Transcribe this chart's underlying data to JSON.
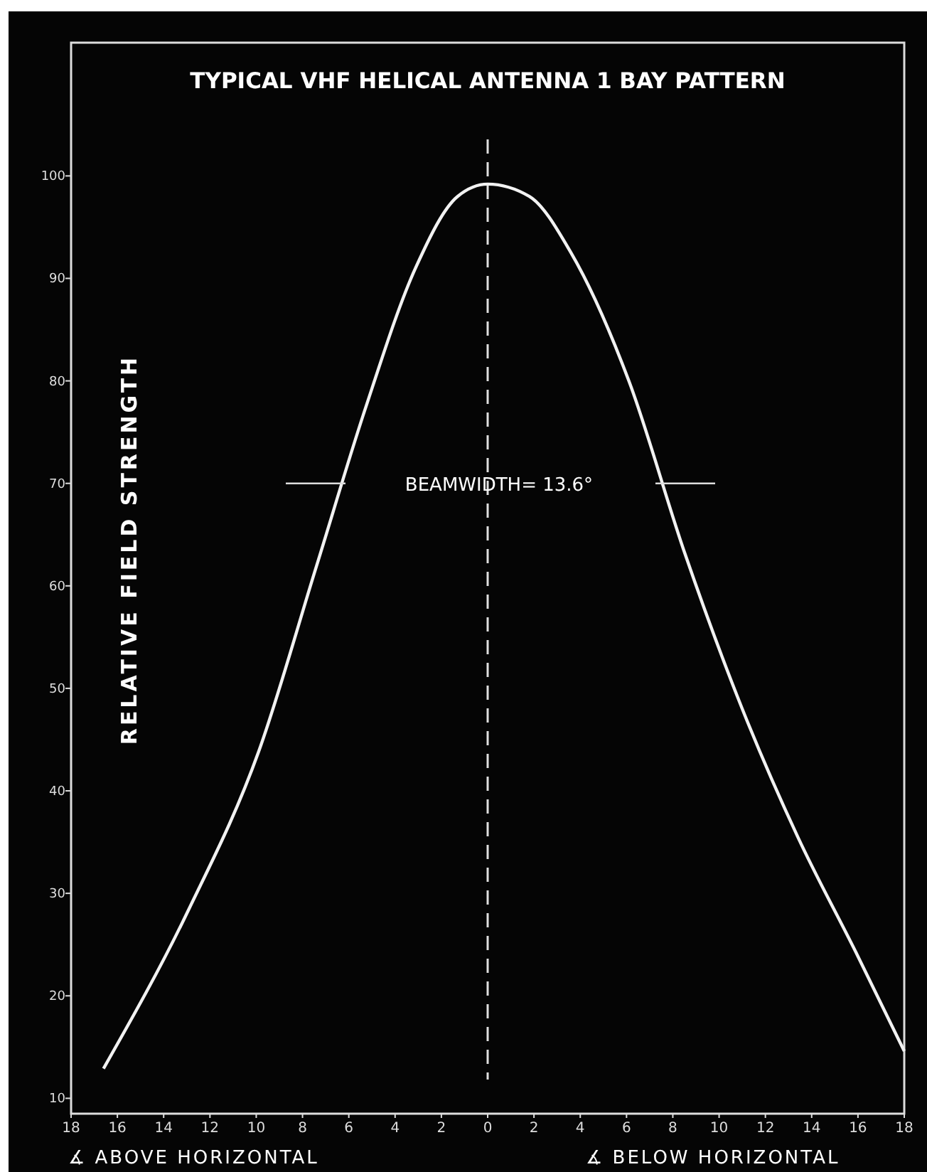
{
  "chart_data": {
    "type": "line",
    "title": "TYPICAL VHF HELICAL ANTENNA  1 BAY PATTERN",
    "ylabel": "RELATIVE FIELD STRENGTH",
    "x": [
      -16.6,
      -12.9,
      -9.9,
      -7.4,
      -5.3,
      -3.1,
      -1.3,
      0,
      1.8,
      3.6,
      6.1,
      8.5,
      11,
      13.4,
      15.9,
      18
    ],
    "series": [
      {
        "color": "#f2f2f2",
        "values": [
          12.9,
          28.5,
          43.8,
          61.9,
          77.2,
          91.1,
          98,
          99.2,
          98,
          92.5,
          80,
          63.3,
          48,
          35.5,
          24.3,
          14.6
        ]
      }
    ],
    "xlim": [
      -18,
      18
    ],
    "ylim": [
      8.5,
      113
    ],
    "xticks": [
      {
        "value": -18,
        "label": "18"
      },
      {
        "value": -16,
        "label": "16"
      },
      {
        "value": -14,
        "label": "14"
      },
      {
        "value": -12,
        "label": "12"
      },
      {
        "value": -10,
        "label": "10"
      },
      {
        "value": -8,
        "label": "8"
      },
      {
        "value": -6,
        "label": "6"
      },
      {
        "value": -4,
        "label": "4"
      },
      {
        "value": -2,
        "label": "2"
      },
      0,
      2,
      4,
      6,
      8,
      10,
      12,
      14,
      16,
      18
    ],
    "yticks": [
      10,
      20,
      30,
      40,
      50,
      60,
      70,
      80,
      90,
      100
    ],
    "ref_lines": [
      {
        "axis": "x",
        "value": 0,
        "line_style": "dashed",
        "color": "#e0e0e0"
      }
    ],
    "annotations": [
      {
        "text": "BEAMWIDTH= 13.6°",
        "x": 0,
        "y": 70
      },
      "∡ ABOVE HORIZONTAL",
      "∡ BELOW HORIZONTAL"
    ],
    "grid": false,
    "line_style": "solid"
  }
}
